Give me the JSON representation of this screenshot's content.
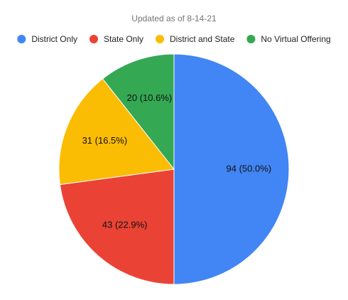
{
  "chart_data": {
    "type": "pie",
    "title": "Updated as of 8-14-21",
    "categories": [
      "District Only",
      "State Only",
      "District and State",
      "No Virtual Offering"
    ],
    "values": [
      94,
      43,
      31,
      20
    ],
    "value_labels": [
      "94 (50.0%)",
      "43 (22.9%)",
      "31 (16.5%)",
      "20 (10.6%)"
    ],
    "colors": [
      "#4285f4",
      "#ea4335",
      "#fbbc04",
      "#34a853"
    ],
    "legend": "top"
  }
}
